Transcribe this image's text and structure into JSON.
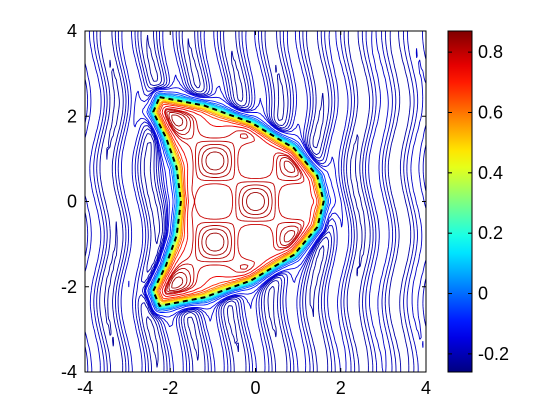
{
  "chart_data": {
    "type": "contour",
    "title": "",
    "xlabel": "",
    "ylabel": "",
    "xlim": [
      -4,
      4
    ],
    "ylim": [
      -4,
      4
    ],
    "x_ticks": [
      -4,
      -2,
      0,
      2,
      4
    ],
    "y_ticks": [
      -4,
      -2,
      0,
      2,
      4
    ],
    "x_tick_labels": [
      "-4",
      "-2",
      "0",
      "2",
      "4"
    ],
    "y_tick_labels": [
      "-4",
      "-2",
      "0",
      "2",
      "4"
    ],
    "colorbar": {
      "colormap": "jet",
      "range": [
        -0.26,
        0.87
      ],
      "ticks": [
        -0.2,
        0,
        0.2,
        0.4,
        0.6,
        0.8
      ],
      "tick_labels": [
        "-0.2",
        "0",
        "0.2",
        "0.4",
        "0.6",
        "0.8"
      ]
    },
    "boundary_curve": {
      "style": "black dashed",
      "level": 0.3,
      "points": [
        [
          -2.25,
          2.45
        ],
        [
          -1.2,
          2.25
        ],
        [
          -0.1,
          1.85
        ],
        [
          0.9,
          1.25
        ],
        [
          1.45,
          0.6
        ],
        [
          1.6,
          0.0
        ],
        [
          1.45,
          -0.6
        ],
        [
          0.9,
          -1.25
        ],
        [
          -0.1,
          -1.85
        ],
        [
          -1.2,
          -2.25
        ],
        [
          -2.25,
          -2.45
        ],
        [
          -2.4,
          -2.1
        ],
        [
          -2.1,
          -1.5
        ],
        [
          -1.85,
          -0.8
        ],
        [
          -1.75,
          0.0
        ],
        [
          -1.85,
          0.8
        ],
        [
          -2.1,
          1.5
        ],
        [
          -2.4,
          2.1
        ]
      ]
    },
    "grid": false,
    "legend": "none"
  }
}
